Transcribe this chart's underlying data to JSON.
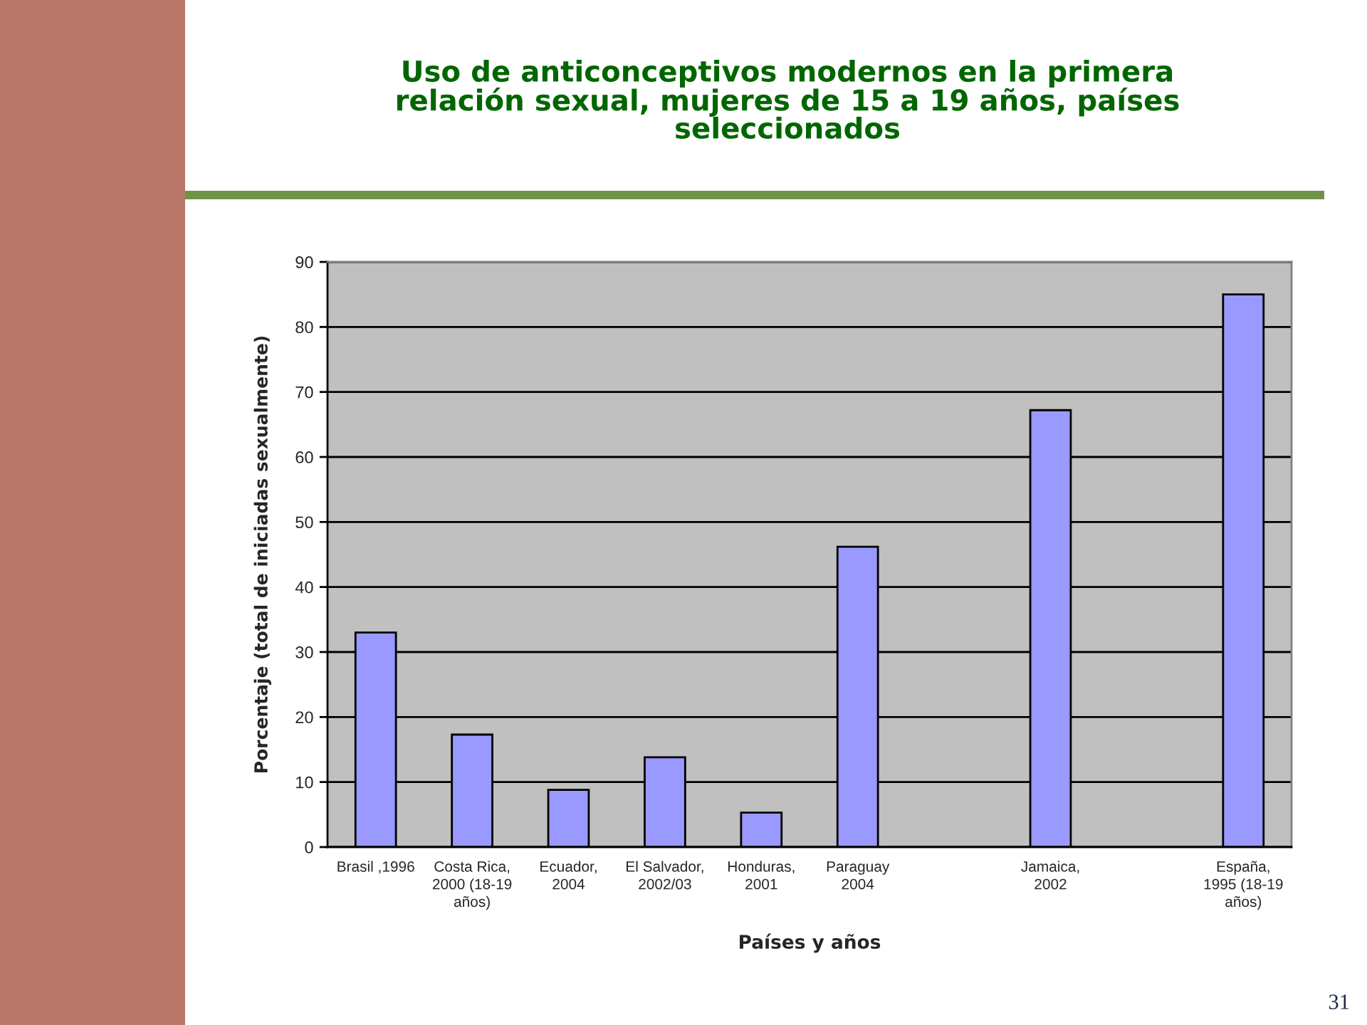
{
  "chart_data": {
    "type": "bar",
    "title": "Uso de anticonceptivos modernos en la primera\nrelación sexual, mujeres de 15 a 19 años, países\nseleccionados",
    "xlabel": "Países y años",
    "ylabel": "Porcentaje (total de iniciadas sexualmente)",
    "categories": [
      "Brasil ,1996",
      "Costa Rica,\n2000 (18-19\naños)",
      "Ecuador,\n2004",
      "El Salvador,\n2002/03",
      "Honduras,\n2001",
      "Paraguay\n2004",
      null,
      "Jamaica,\n2002",
      null,
      "España,\n1995 (18-19\naños)"
    ],
    "values": [
      33,
      17.3,
      8.8,
      13.8,
      5.3,
      46.2,
      null,
      67.2,
      null,
      85
    ],
    "color": "#9999ff",
    "ylim": [
      0,
      90
    ],
    "yticks": [
      0,
      10,
      20,
      30,
      40,
      50,
      60,
      70,
      80,
      90
    ],
    "grid": "y",
    "annotations": [
      "31"
    ]
  }
}
